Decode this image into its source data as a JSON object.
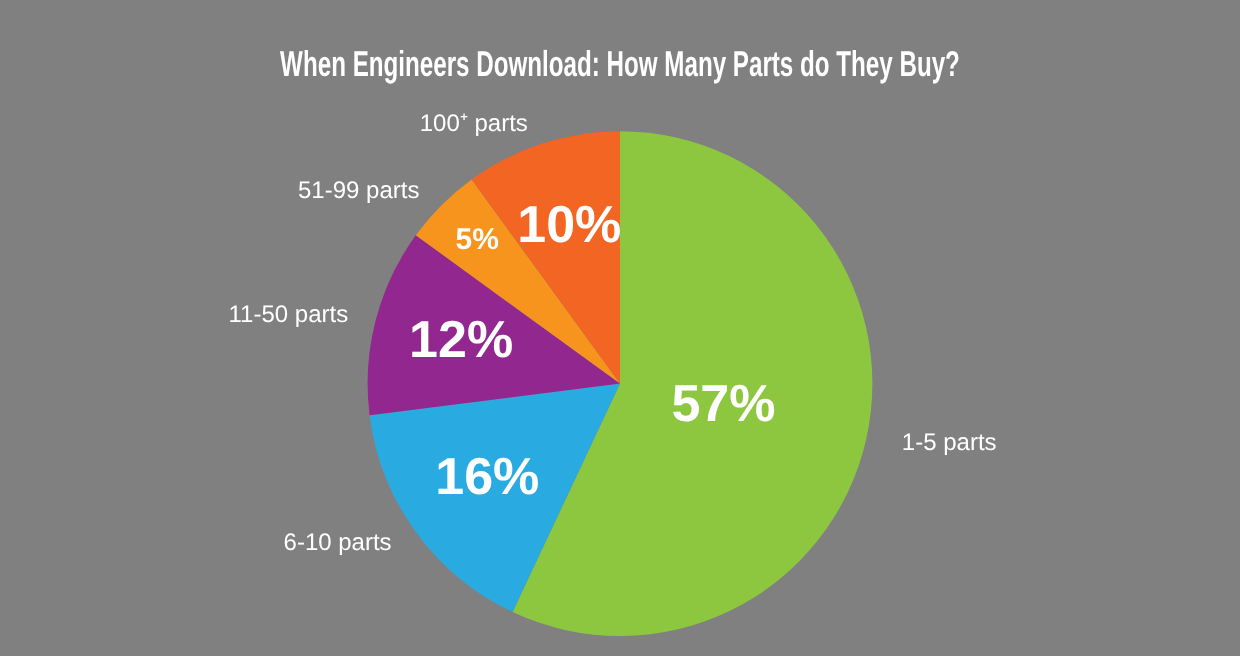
{
  "chart_data": {
    "type": "pie",
    "title": "When Engineers Download: How Many Parts do They Buy?",
    "categories": [
      "1-5 parts",
      "6-10 parts",
      "11-50 parts",
      "51-99 parts",
      "100⁺ parts"
    ],
    "values": [
      57,
      16,
      12,
      5,
      10
    ],
    "colors": [
      "#8dc63f",
      "#29abe2",
      "#92278f",
      "#f7941d",
      "#f26522"
    ],
    "value_labels": [
      "57%",
      "16%",
      "12%",
      "5%",
      "10%"
    ],
    "legend": false
  }
}
